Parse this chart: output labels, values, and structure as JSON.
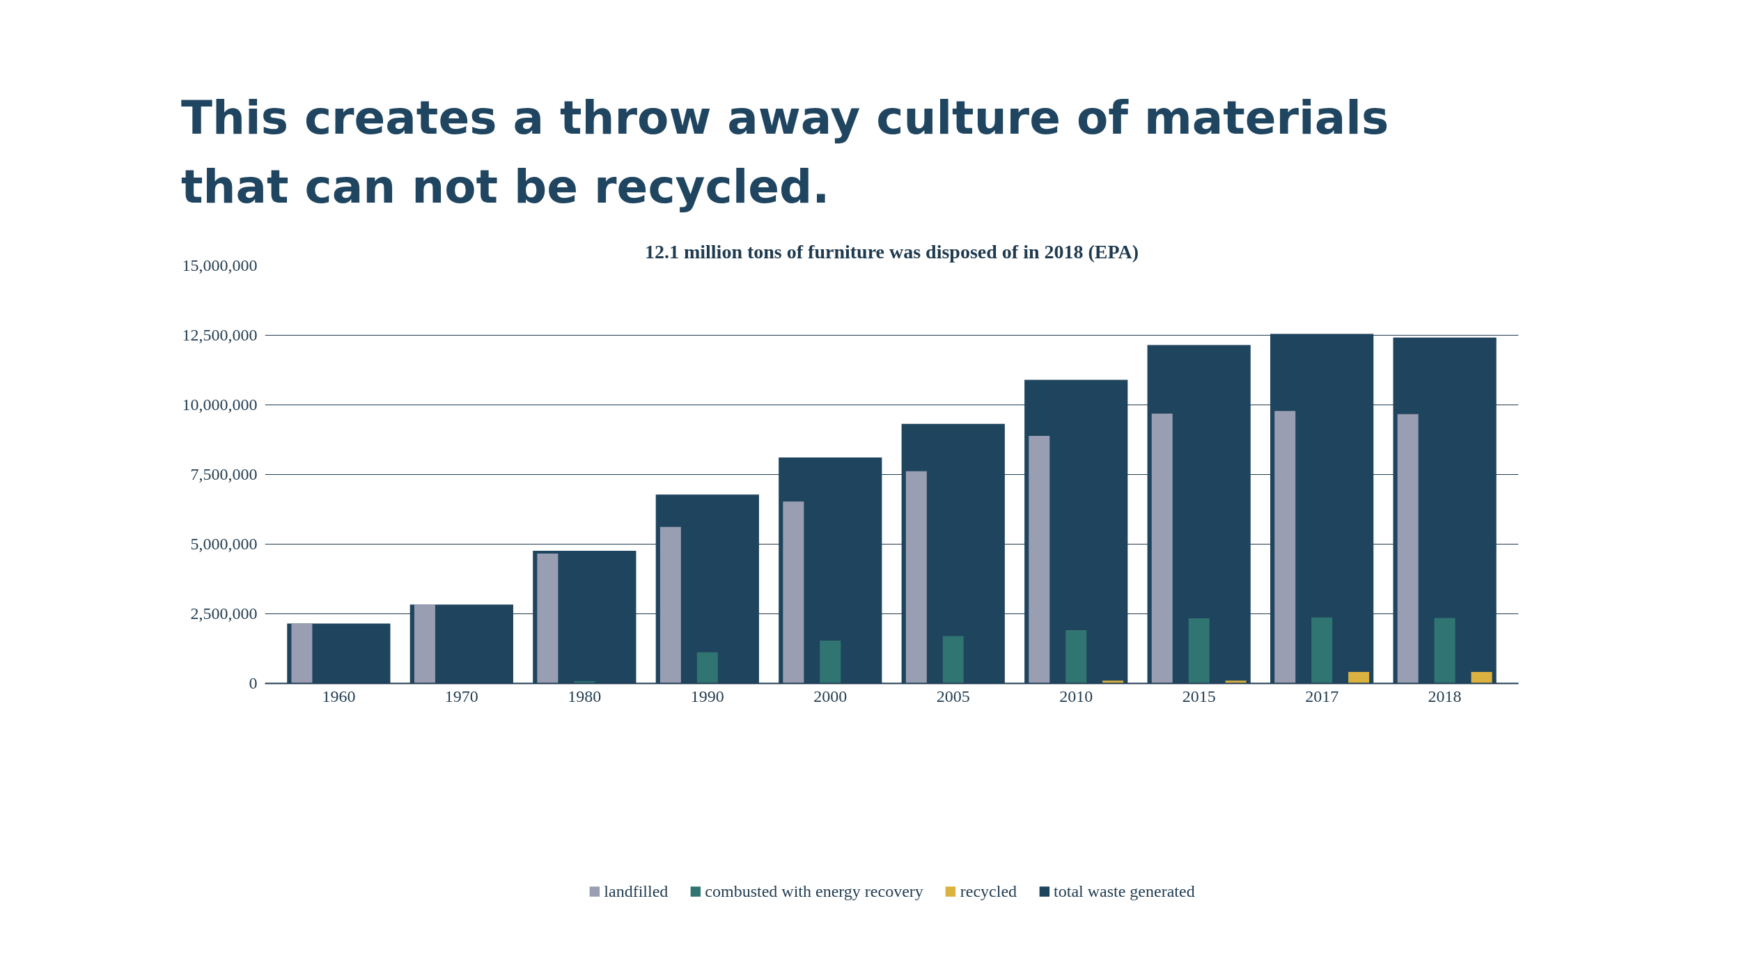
{
  "chart_data": {
    "type": "bar",
    "title": "This creates a throw away culture of materials that can not be recycled.",
    "subtitle": "12.1 million tons of furniture was disposed of in 2018 (EPA)",
    "categories": [
      "1960",
      "1970",
      "1980",
      "1990",
      "2000",
      "2005",
      "2010",
      "2015",
      "2017",
      "2018"
    ],
    "series": [
      {
        "name": "landfilled",
        "color": "#9a9eb2",
        "values": [
          2150000,
          2830000,
          4660000,
          5620000,
          6530000,
          7620000,
          8890000,
          9690000,
          9780000,
          9670000
        ]
      },
      {
        "name": "combusted with energy recovery",
        "color": "#317572",
        "values": [
          0,
          0,
          80000,
          1120000,
          1540000,
          1700000,
          1910000,
          2340000,
          2370000,
          2350000
        ]
      },
      {
        "name": "recycled",
        "color": "#dbb13f",
        "values": [
          0,
          0,
          0,
          0,
          0,
          0,
          100000,
          100000,
          410000,
          410000
        ]
      },
      {
        "name": "total waste generated",
        "color": "#1f445e",
        "values": [
          2150000,
          2830000,
          4760000,
          6780000,
          8110000,
          9320000,
          10900000,
          12150000,
          12550000,
          12420000
        ]
      }
    ],
    "ylim": [
      0,
      15000000
    ],
    "yticks": [
      {
        "value": 0,
        "label": "0"
      },
      {
        "value": 2500000,
        "label": "2,500,000"
      },
      {
        "value": 5000000,
        "label": "5,000,000"
      },
      {
        "value": 7500000,
        "label": "7,500,000"
      },
      {
        "value": 10000000,
        "label": "10,000,000"
      },
      {
        "value": 12500000,
        "label": "12,500,000"
      },
      {
        "value": 15000000,
        "label": "15,000,000"
      }
    ],
    "grid": "y",
    "legend": "bottom"
  }
}
